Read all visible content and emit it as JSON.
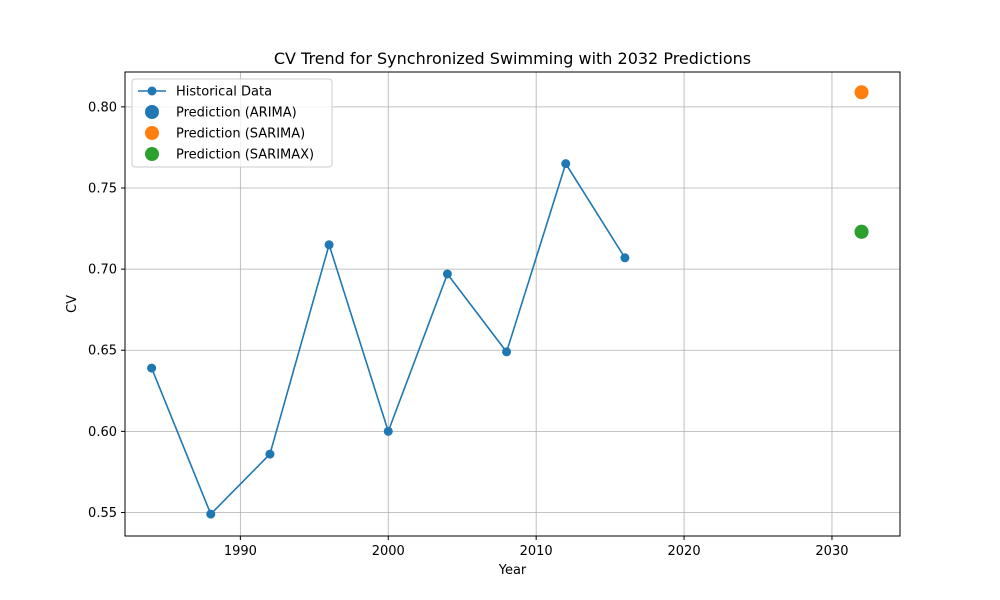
{
  "chart_data": {
    "type": "line",
    "title": "CV Trend for Synchronized Swimming with 2032 Predictions",
    "xlabel": "Year",
    "ylabel": "CV",
    "xlim": [
      1982.2,
      2034.6
    ],
    "ylim": [
      0.5355,
      0.8215
    ],
    "xticks": [
      1990,
      2000,
      2010,
      2020,
      2030
    ],
    "yticks": [
      0.55,
      0.6,
      0.65,
      0.7,
      0.75,
      0.8
    ],
    "grid": true,
    "legend_position": "top-left",
    "series": [
      {
        "name": "Historical Data",
        "kind": "line-markers",
        "color": "#1f77b4",
        "x": [
          1984,
          1988,
          1992,
          1996,
          2000,
          2004,
          2008,
          2012,
          2016
        ],
        "y": [
          0.639,
          0.549,
          0.586,
          0.715,
          0.6,
          0.697,
          0.649,
          0.765,
          0.707
        ]
      },
      {
        "name": "Prediction (ARIMA)",
        "kind": "scatter",
        "color": "#1f77b4",
        "x": [
          2032
        ],
        "y": [
          0.723
        ]
      },
      {
        "name": "Prediction (SARIMA)",
        "kind": "scatter",
        "color": "#ff7f0e",
        "x": [
          2032
        ],
        "y": [
          0.809
        ]
      },
      {
        "name": "Prediction (SARIMAX)",
        "kind": "scatter",
        "color": "#2ca02c",
        "x": [
          2032
        ],
        "y": [
          0.723
        ]
      }
    ]
  }
}
